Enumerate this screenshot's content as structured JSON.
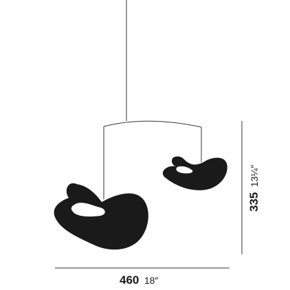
{
  "colors": {
    "ink": "#1a1a1a",
    "line": "#333333",
    "background": "#ffffff"
  },
  "dimensions": {
    "width": {
      "metric": "460",
      "imperial": "18″"
    },
    "height": {
      "metric": "335",
      "imperial": "13¼″"
    }
  }
}
